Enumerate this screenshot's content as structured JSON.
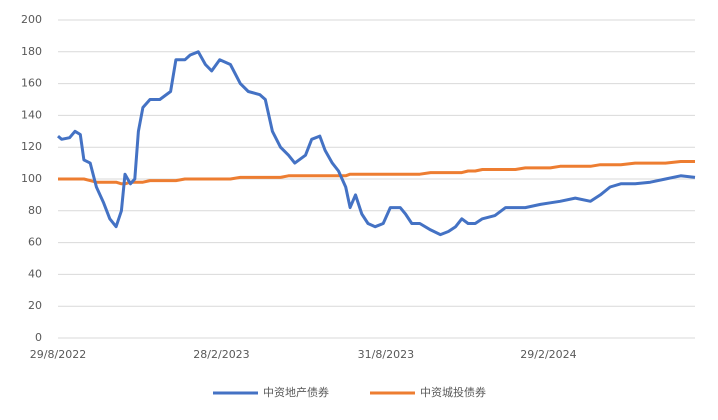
{
  "chart_data": {
    "type": "line",
    "x": [
      0,
      4,
      13,
      19,
      25,
      29,
      36,
      43,
      51,
      58,
      65,
      71,
      75,
      81,
      86,
      90,
      95,
      103,
      114,
      126,
      132,
      142,
      148,
      157,
      165,
      172,
      181,
      193,
      204,
      213,
      226,
      232,
      240,
      249,
      258,
      265,
      277,
      284,
      293,
      299,
      307,
      314,
      322,
      327,
      333,
      340,
      347,
      355,
      364,
      372,
      383,
      389,
      396,
      405,
      417,
      428,
      437,
      445,
      452,
      459,
      467,
      475,
      489,
      501,
      512,
      523,
      540,
      551,
      562,
      579,
      596,
      607,
      618,
      630,
      646,
      663,
      680,
      697,
      713
    ],
    "series": [
      {
        "name": "中资地产债券",
        "color": "#4472c4",
        "values": [
          127,
          125,
          126,
          130,
          128,
          112,
          110,
          95,
          85,
          75,
          70,
          80,
          103,
          97,
          100,
          130,
          145,
          150,
          150,
          155,
          175,
          175,
          178,
          180,
          172,
          168,
          175,
          172,
          160,
          155,
          153,
          150,
          130,
          120,
          115,
          110,
          115,
          125,
          127,
          118,
          110,
          105,
          95,
          82,
          90,
          78,
          72,
          70,
          72,
          82,
          82,
          78,
          72,
          72,
          68,
          65,
          67,
          70,
          75,
          72,
          72,
          75,
          77,
          82,
          82,
          82,
          84,
          85,
          86,
          88,
          86,
          90,
          95,
          97,
          97,
          98,
          100,
          102,
          101
        ]
      },
      {
        "name": "中资城投债券",
        "color": "#ed7d31",
        "values": [
          100,
          100,
          100,
          100,
          100,
          100,
          99,
          98,
          98,
          98,
          98,
          97,
          97,
          98,
          98,
          98,
          98,
          99,
          99,
          99,
          99,
          100,
          100,
          100,
          100,
          100,
          100,
          100,
          101,
          101,
          101,
          101,
          101,
          101,
          102,
          102,
          102,
          102,
          102,
          102,
          102,
          102,
          102,
          103,
          103,
          103,
          103,
          103,
          103,
          103,
          103,
          103,
          103,
          103,
          104,
          104,
          104,
          104,
          104,
          105,
          105,
          106,
          106,
          106,
          106,
          107,
          107,
          107,
          108,
          108,
          108,
          109,
          109,
          109,
          110,
          110,
          110,
          111,
          111
        ]
      }
    ],
    "xlim": [
      0,
      713
    ],
    "xticks": [
      {
        "value": 0,
        "label": "29/8/2022"
      },
      {
        "value": 183,
        "label": "28/2/2023"
      },
      {
        "value": 367,
        "label": "31/8/2023"
      },
      {
        "value": 549,
        "label": "29/2/2024"
      }
    ],
    "ylim": [
      0,
      200
    ],
    "yticks": [
      0,
      20,
      40,
      60,
      80,
      100,
      120,
      140,
      160,
      180,
      200
    ],
    "grid": true
  }
}
